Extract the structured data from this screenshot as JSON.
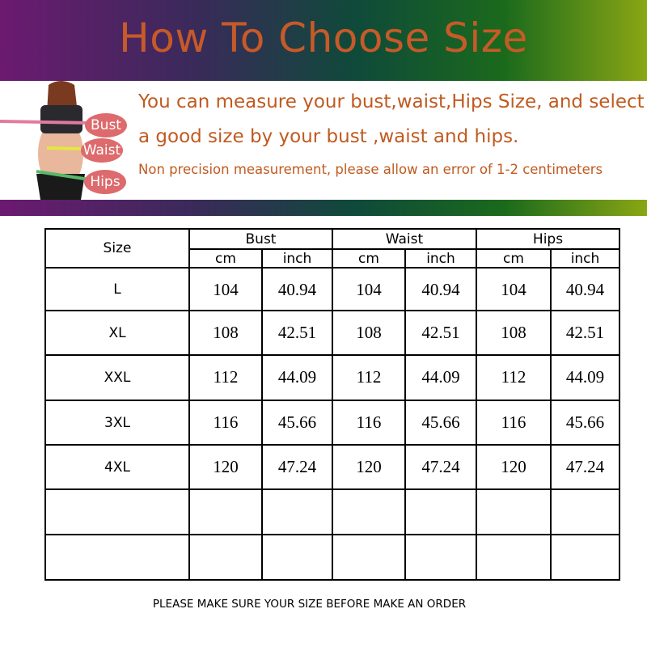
{
  "title": "How To Choose Size",
  "description": {
    "line1": "You can measure your bust,waist,Hips Size, and select",
    "line2": "a good size by your bust ,waist and hips.",
    "line3": "Non precision measurement, please allow an error of 1-2 centimeters"
  },
  "figure_labels": {
    "bust": "Bust",
    "waist": "Waist",
    "hips": "Hips"
  },
  "colors": {
    "title": "#c65a28",
    "label_bubble": "#dd6a6c",
    "band_left": "#6b1a70",
    "band_right": "#8aa614"
  },
  "table": {
    "size_header": "Size",
    "groups": [
      "Bust",
      "Waist",
      "Hips"
    ],
    "units": [
      "cm",
      "inch",
      "cm",
      "inch",
      "cm",
      "inch"
    ],
    "rows": [
      {
        "size": "L",
        "values": [
          "104",
          "40.94",
          "104",
          "40.94",
          "104",
          "40.94"
        ]
      },
      {
        "size": "XL",
        "values": [
          "108",
          "42.51",
          "108",
          "42.51",
          "108",
          "42.51"
        ]
      },
      {
        "size": "XXL",
        "values": [
          "112",
          "44.09",
          "112",
          "44.09",
          "112",
          "44.09"
        ]
      },
      {
        "size": "3XL",
        "values": [
          "116",
          "45.66",
          "116",
          "45.66",
          "116",
          "45.66"
        ]
      },
      {
        "size": "4XL",
        "values": [
          "120",
          "47.24",
          "120",
          "47.24",
          "120",
          "47.24"
        ]
      },
      {
        "size": "",
        "values": [
          "",
          "",
          "",
          "",
          "",
          ""
        ]
      },
      {
        "size": "",
        "values": [
          "",
          "",
          "",
          "",
          "",
          ""
        ]
      }
    ]
  },
  "footer_note": "PLEASE MAKE SURE YOUR SIZE BEFORE MAKE AN ORDER"
}
